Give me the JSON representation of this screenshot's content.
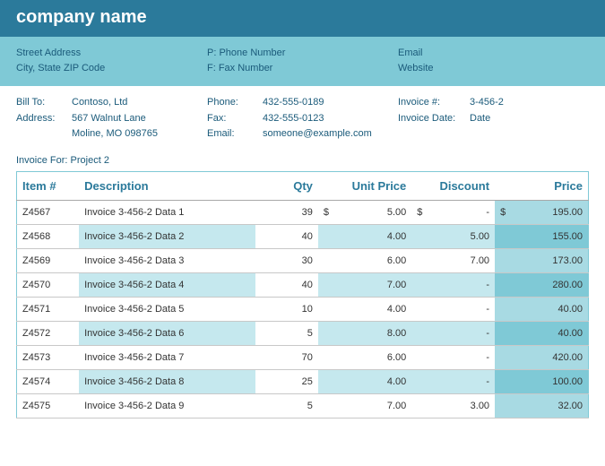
{
  "header": {
    "company": "company name"
  },
  "contact": {
    "col1": {
      "line1": "Street Address",
      "line2": "City, State ZIP Code"
    },
    "col2": {
      "line1": "P: Phone Number",
      "line2": "F: Fax Number"
    },
    "col3": {
      "line1": "Email",
      "line2": "Website"
    }
  },
  "bill": {
    "left": {
      "billto_label": "Bill To:",
      "billto_value": "Contoso, Ltd",
      "address_label": "Address:",
      "address_line1": "567 Walnut Lane",
      "address_line2": "Moline, MO 098765"
    },
    "mid": {
      "phone_label": "Phone:",
      "phone_value": "432-555-0189",
      "fax_label": "Fax:",
      "fax_value": "432-555-0123",
      "email_label": "Email:",
      "email_value": "someone@example.com"
    },
    "right": {
      "invno_label": "Invoice #:",
      "invno_value": "3-456-2",
      "invdate_label": "Invoice Date:",
      "invdate_value": "Date"
    }
  },
  "invoice_for_label": "Invoice For:",
  "invoice_for_value": "Project 2",
  "table": {
    "headers": {
      "item": "Item #",
      "desc": "Description",
      "qty": "Qty",
      "unit": "Unit Price",
      "disc": "Discount",
      "price": "Price"
    },
    "rows": [
      {
        "item": "Z4567",
        "desc": "Invoice 3-456-2 Data 1",
        "qty": "39",
        "unit_sym": "$",
        "unit": "5.00",
        "disc_sym": "$",
        "disc": "-",
        "price_sym": "$",
        "price": "195.00"
      },
      {
        "item": "Z4568",
        "desc": "Invoice 3-456-2 Data 2",
        "qty": "40",
        "unit_sym": "",
        "unit": "4.00",
        "disc_sym": "",
        "disc": "5.00",
        "price_sym": "",
        "price": "155.00"
      },
      {
        "item": "Z4569",
        "desc": "Invoice 3-456-2 Data 3",
        "qty": "30",
        "unit_sym": "",
        "unit": "6.00",
        "disc_sym": "",
        "disc": "7.00",
        "price_sym": "",
        "price": "173.00"
      },
      {
        "item": "Z4570",
        "desc": "Invoice 3-456-2 Data 4",
        "qty": "40",
        "unit_sym": "",
        "unit": "7.00",
        "disc_sym": "",
        "disc": "-",
        "price_sym": "",
        "price": "280.00"
      },
      {
        "item": "Z4571",
        "desc": "Invoice 3-456-2 Data 5",
        "qty": "10",
        "unit_sym": "",
        "unit": "4.00",
        "disc_sym": "",
        "disc": "-",
        "price_sym": "",
        "price": "40.00"
      },
      {
        "item": "Z4572",
        "desc": "Invoice 3-456-2 Data 6",
        "qty": "5",
        "unit_sym": "",
        "unit": "8.00",
        "disc_sym": "",
        "disc": "-",
        "price_sym": "",
        "price": "40.00"
      },
      {
        "item": "Z4573",
        "desc": "Invoice 3-456-2 Data 7",
        "qty": "70",
        "unit_sym": "",
        "unit": "6.00",
        "disc_sym": "",
        "disc": "-",
        "price_sym": "",
        "price": "420.00"
      },
      {
        "item": "Z4574",
        "desc": "Invoice 3-456-2 Data 8",
        "qty": "25",
        "unit_sym": "",
        "unit": "4.00",
        "disc_sym": "",
        "disc": "-",
        "price_sym": "",
        "price": "100.00"
      },
      {
        "item": "Z4575",
        "desc": "Invoice 3-456-2 Data 9",
        "qty": "5",
        "unit_sym": "",
        "unit": "7.00",
        "disc_sym": "",
        "disc": "3.00",
        "price_sym": "",
        "price": "32.00"
      }
    ]
  },
  "colors": {
    "header_bg": "#2b7a9b",
    "contact_bg": "#7fc9d6",
    "row_alt_bg": "#c5e8ee",
    "price_alt_bg": "#7fc9d6",
    "price_even_bg": "#a8dae3",
    "text": "#1a5a7a"
  }
}
